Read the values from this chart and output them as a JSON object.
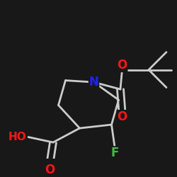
{
  "bg_color": "#181818",
  "bond_color": "#cccccc",
  "bond_width": 2.0,
  "atom_colors": {
    "O": "#ff1515",
    "N": "#2020ff",
    "F": "#44bb44",
    "bg": "#181818"
  },
  "fontsize": 12,
  "fig_size": [
    2.5,
    2.5
  ],
  "dpi": 100
}
